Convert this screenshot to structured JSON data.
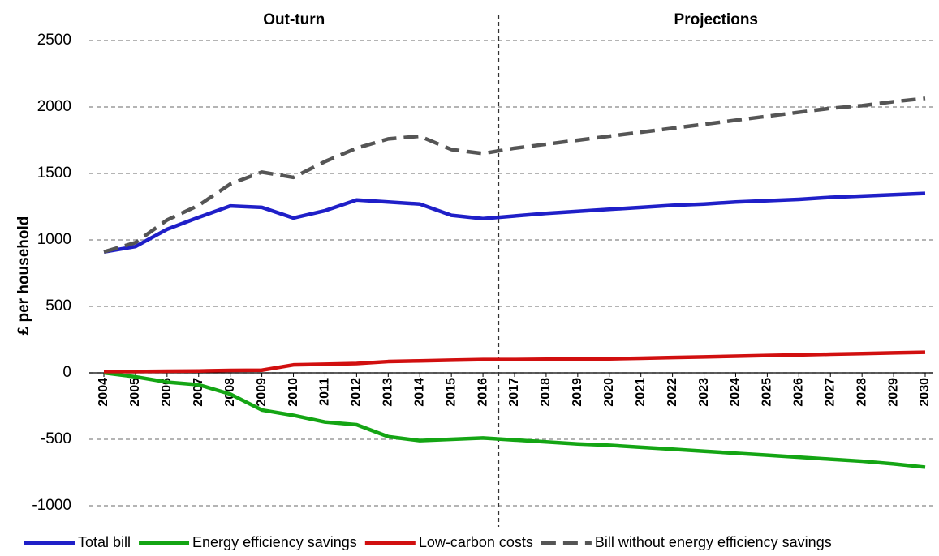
{
  "chart_data": {
    "type": "line",
    "y_label": "£ per household",
    "annotations": [
      "Out-turn",
      "Projections"
    ],
    "categories": [
      "2004",
      "2005",
      "2006",
      "2007",
      "2008",
      "2009",
      "2010",
      "2011",
      "2012",
      "2013",
      "2014",
      "2015",
      "2016",
      "2017",
      "2018",
      "2019",
      "2020",
      "2021",
      "2022",
      "2023",
      "2024",
      "2025",
      "2026",
      "2027",
      "2028",
      "2029",
      "2030"
    ],
    "series": [
      {
        "name": "Total bill",
        "color": "#1f1fc8",
        "style": "solid",
        "values": [
          910,
          950,
          1080,
          1170,
          1255,
          1245,
          1165,
          1220,
          1300,
          1285,
          1270,
          1185,
          1160,
          1180,
          1200,
          1215,
          1230,
          1245,
          1260,
          1270,
          1285,
          1295,
          1305,
          1320,
          1330,
          1340,
          1350
        ]
      },
      {
        "name": "Energy efficiency savings",
        "color": "#14a514",
        "style": "solid",
        "values": [
          0,
          -30,
          -70,
          -90,
          -160,
          -280,
          -320,
          -370,
          -390,
          -480,
          -510,
          -500,
          -490,
          -505,
          -520,
          -535,
          -545,
          -560,
          -575,
          -590,
          -605,
          -620,
          -635,
          -650,
          -665,
          -685,
          -710
        ]
      },
      {
        "name": "Low-carbon costs",
        "color": "#d10f0f",
        "style": "solid",
        "values": [
          10,
          10,
          12,
          14,
          18,
          20,
          60,
          65,
          70,
          85,
          90,
          95,
          100,
          100,
          102,
          104,
          105,
          110,
          115,
          120,
          125,
          130,
          135,
          140,
          145,
          150,
          155
        ]
      },
      {
        "name": "Bill without energy efficiency savings",
        "color": "#555555",
        "style": "dashed",
        "values": [
          910,
          980,
          1150,
          1260,
          1420,
          1510,
          1470,
          1590,
          1690,
          1760,
          1780,
          1680,
          1650,
          1690,
          1720,
          1750,
          1780,
          1810,
          1840,
          1870,
          1900,
          1930,
          1960,
          1990,
          2010,
          2040,
          2065
        ]
      }
    ],
    "ylim": [
      -1000,
      2500
    ],
    "yticks": [
      -1000,
      -500,
      0,
      500,
      1000,
      1500,
      2000,
      2500
    ],
    "grid": true
  }
}
